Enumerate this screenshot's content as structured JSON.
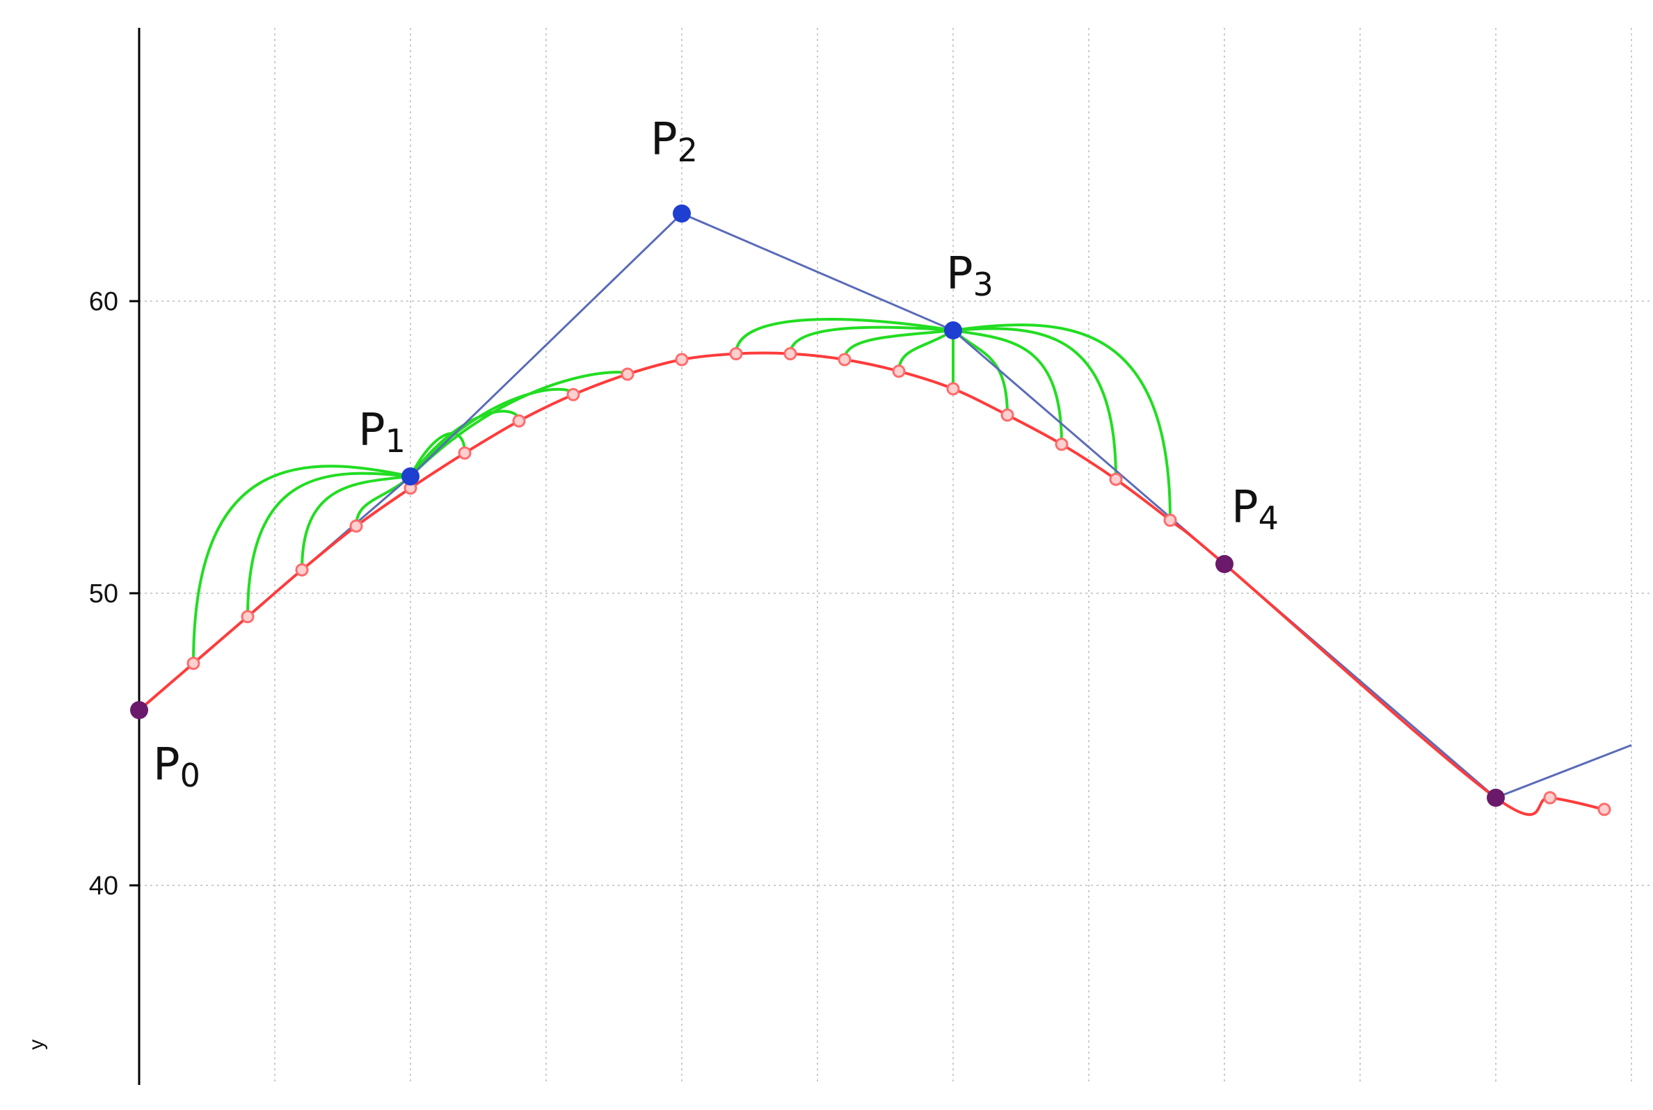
{
  "chart_data": {
    "type": "line",
    "title": "",
    "xlabel": "",
    "ylabel": "y",
    "ylim": [
      34,
      68
    ],
    "xlim": [
      0,
      55
    ],
    "grid": true,
    "y_ticks": [
      40,
      50,
      60
    ],
    "y_tick_labels": [
      "40",
      "50",
      "60"
    ],
    "x_grid": [
      5,
      10,
      15,
      20,
      25,
      30,
      35,
      40,
      45,
      50,
      55
    ],
    "colors": {
      "control_polygon": "#5a6bb8",
      "curve": "#ff3b3b",
      "sample_point": "#ff6b6b",
      "control_point": "#1f3fd0",
      "end_point": "#6b1a6b",
      "construction": "#22dd22",
      "grid": "#cccccc",
      "axis": "#000000"
    },
    "control_points": [
      {
        "name": "P",
        "index": "0",
        "x": 0,
        "y": 46,
        "kind": "end"
      },
      {
        "name": "P",
        "index": "1",
        "x": 10,
        "y": 54,
        "kind": "control"
      },
      {
        "name": "P",
        "index": "2",
        "x": 20,
        "y": 63,
        "kind": "control"
      },
      {
        "name": "P",
        "index": "3",
        "x": 30,
        "y": 59,
        "kind": "control"
      },
      {
        "name": "P",
        "index": "4",
        "x": 40,
        "y": 51,
        "kind": "end"
      }
    ],
    "extra_points": [
      {
        "x": 50,
        "y": 43,
        "kind": "end"
      }
    ],
    "polygon_tail": [
      {
        "x": 50,
        "y": 43
      },
      {
        "x": 55,
        "y": 44.8
      }
    ],
    "curve_samples": [
      {
        "x": 0,
        "y": 46
      },
      {
        "x": 2,
        "y": 47.6
      },
      {
        "x": 4,
        "y": 49.2
      },
      {
        "x": 6,
        "y": 50.8
      },
      {
        "x": 8,
        "y": 52.3
      },
      {
        "x": 10,
        "y": 53.6
      },
      {
        "x": 12,
        "y": 54.8
      },
      {
        "x": 14,
        "y": 55.9
      },
      {
        "x": 16,
        "y": 56.8
      },
      {
        "x": 18,
        "y": 57.5
      },
      {
        "x": 20,
        "y": 58.0
      },
      {
        "x": 22,
        "y": 58.2
      },
      {
        "x": 24,
        "y": 58.2
      },
      {
        "x": 26,
        "y": 58.0
      },
      {
        "x": 28,
        "y": 57.6
      },
      {
        "x": 30,
        "y": 57.0
      },
      {
        "x": 32,
        "y": 56.1
      },
      {
        "x": 34,
        "y": 55.1
      },
      {
        "x": 36,
        "y": 53.9
      },
      {
        "x": 38,
        "y": 52.5
      },
      {
        "x": 40,
        "y": 51.0
      },
      {
        "x": 50,
        "y": 43.0
      },
      {
        "x": 52,
        "y": 43.0
      },
      {
        "x": 54,
        "y": 42.6
      }
    ],
    "construction_arcs": [
      {
        "from_x": 2,
        "from_y": 47.6,
        "to": 1,
        "peak_y": 54.8
      },
      {
        "from_x": 4,
        "from_y": 49.2,
        "to": 1,
        "peak_y": 54.3
      },
      {
        "from_x": 6,
        "from_y": 50.8,
        "to": 1,
        "peak_y": 53.8
      },
      {
        "from_x": 8,
        "from_y": 52.3,
        "to": 1,
        "peak_y": 53.2
      },
      {
        "from_x": 12,
        "from_y": 54.8,
        "to": 1,
        "peak_y": 55.8
      },
      {
        "from_x": 14,
        "from_y": 55.9,
        "to": 1,
        "peak_y": 56.5
      },
      {
        "from_x": 16,
        "from_y": 56.8,
        "to": 1,
        "peak_y": 57.2
      },
      {
        "from_x": 18,
        "from_y": 57.5,
        "to": 1,
        "peak_y": 57.7
      },
      {
        "from_x": 22,
        "from_y": 58.2,
        "to": 3,
        "peak_y": 59.6
      },
      {
        "from_x": 24,
        "from_y": 58.2,
        "to": 3,
        "peak_y": 59.2
      },
      {
        "from_x": 26,
        "from_y": 58.0,
        "to": 3,
        "peak_y": 58.8
      },
      {
        "from_x": 28,
        "from_y": 57.6,
        "to": 3,
        "peak_y": 58.4
      },
      {
        "from_x": 30,
        "from_y": 57.0,
        "to": 3,
        "peak_y": 58.0
      },
      {
        "from_x": 32,
        "from_y": 56.1,
        "to": 3,
        "peak_y": 58.2
      },
      {
        "from_x": 34,
        "from_y": 55.1,
        "to": 3,
        "peak_y": 58.7
      },
      {
        "from_x": 36,
        "from_y": 53.9,
        "to": 3,
        "peak_y": 59.2
      },
      {
        "from_x": 38,
        "from_y": 52.5,
        "to": 3,
        "peak_y": 59.5
      }
    ]
  }
}
